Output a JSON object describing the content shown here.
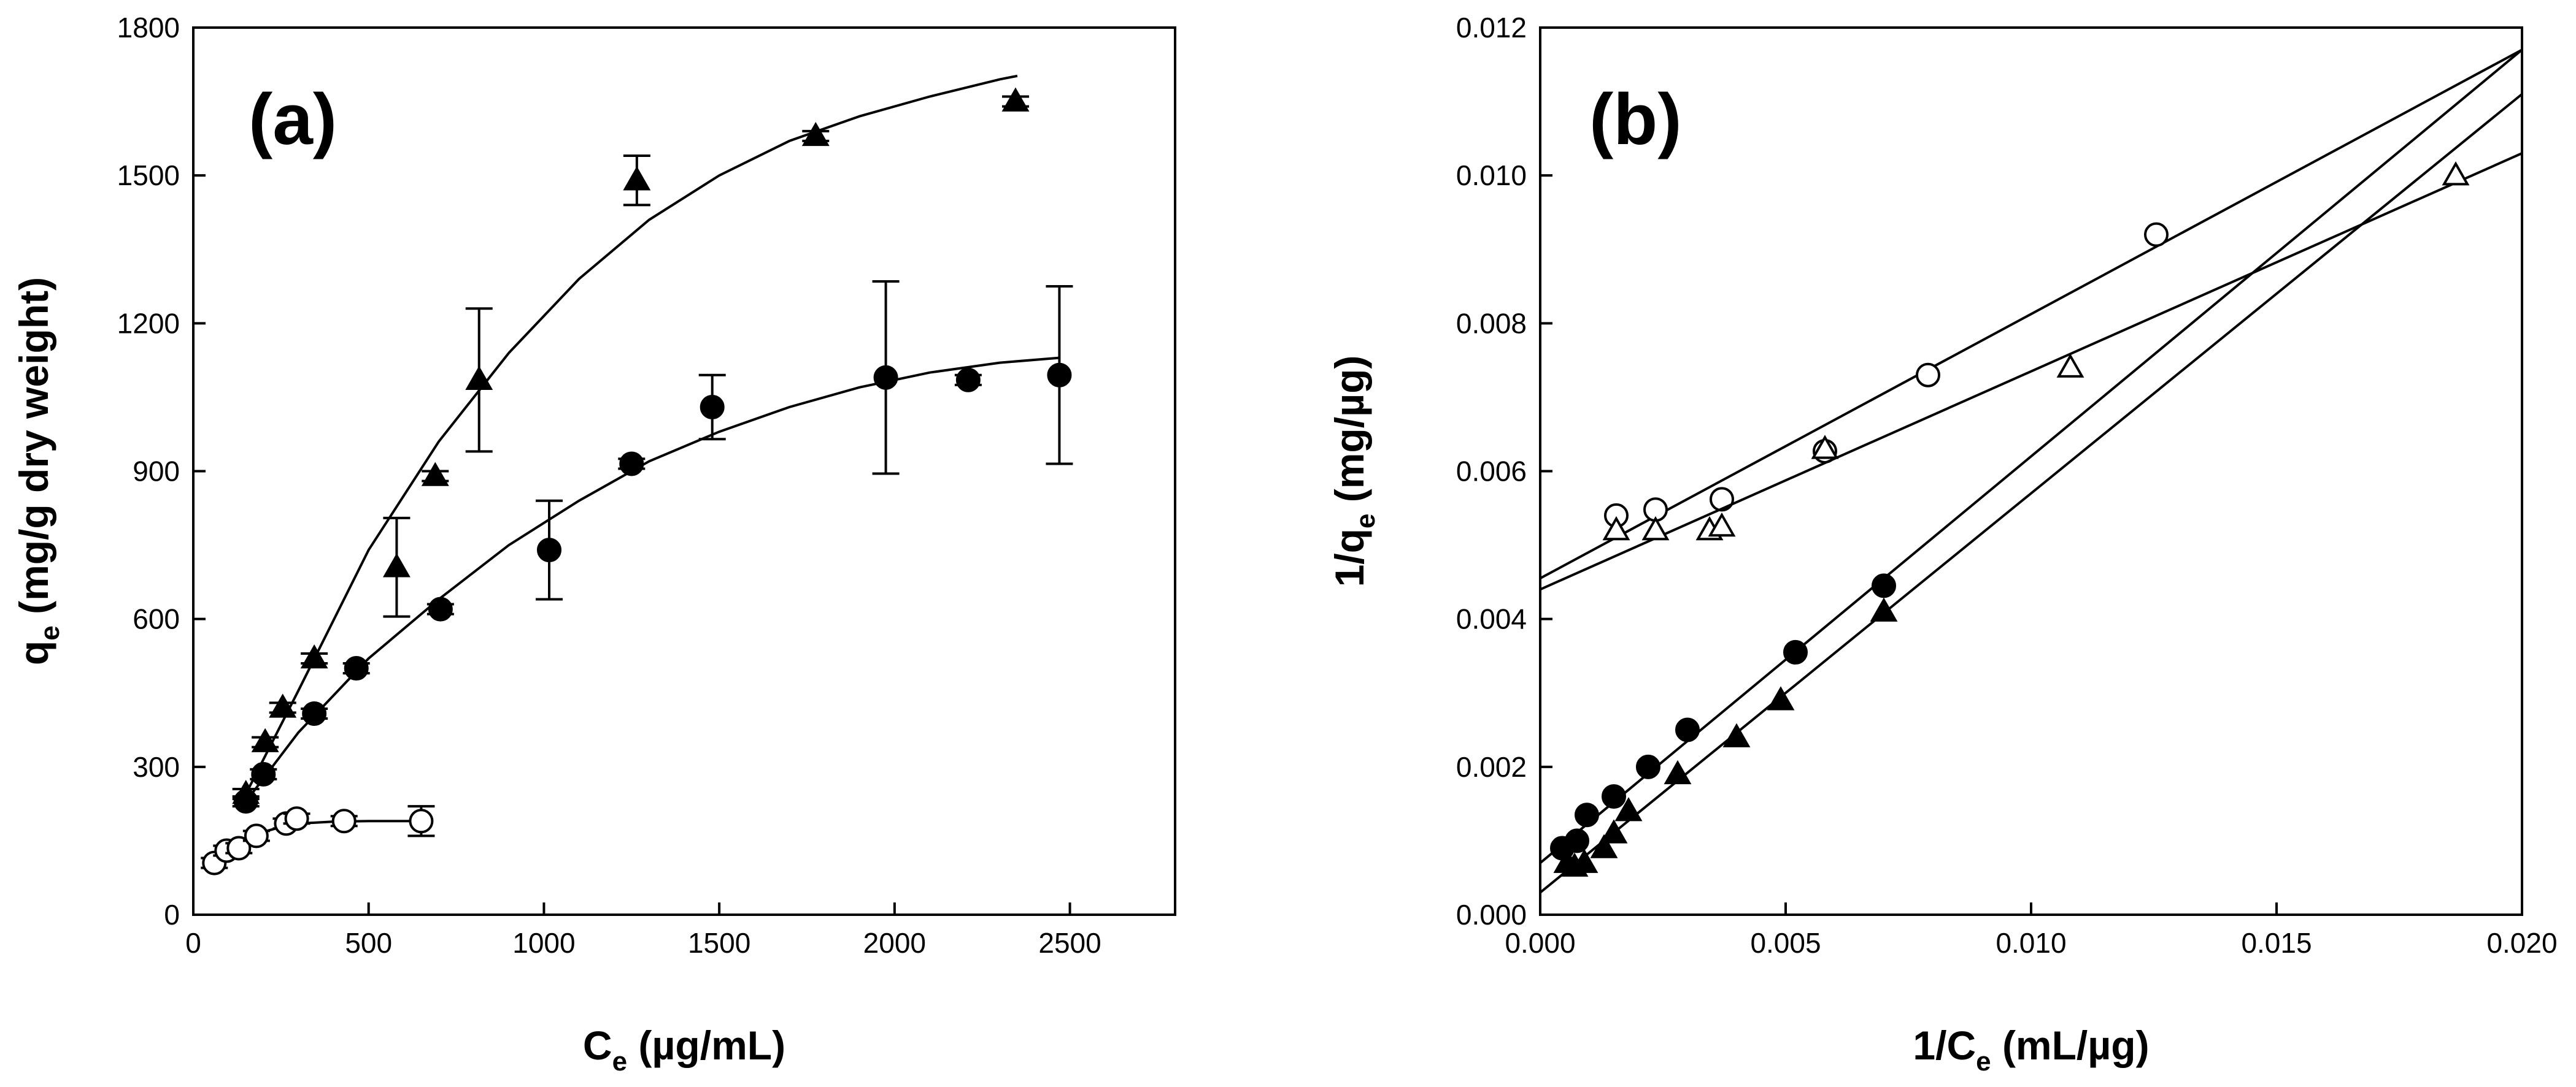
{
  "chart_data": [
    {
      "panel": "a",
      "type": "scatter",
      "panel_label": "(a)",
      "xlabel": {
        "main": "C",
        "sub": "e",
        "rest": " (µg/mL)"
      },
      "ylabel": {
        "main": "q",
        "sub": "e",
        "rest": " (mg/g dry weight)"
      },
      "xlim": [
        0,
        2800
      ],
      "ylim": [
        0,
        1800
      ],
      "xticks": [
        0,
        500,
        1000,
        1500,
        2000,
        2500
      ],
      "yticks": [
        0,
        300,
        600,
        900,
        1200,
        1500,
        1800
      ],
      "xtick_labels": [
        "0",
        "500",
        "1000",
        "1500",
        "2000",
        "2500"
      ],
      "ytick_labels": [
        "0",
        "300",
        "600",
        "900",
        "1200",
        "1500",
        "1800"
      ],
      "series": [
        {
          "name": "triangle-filled",
          "marker": "triangle",
          "filled": true,
          "points": [
            {
              "x": 150,
              "y": 245,
              "err": 10
            },
            {
              "x": 205,
              "y": 350,
              "err": 10
            },
            {
              "x": 255,
              "y": 420,
              "err": 10
            },
            {
              "x": 345,
              "y": 520,
              "err": 10
            },
            {
              "x": 580,
              "y": 705,
              "err": 100
            },
            {
              "x": 690,
              "y": 890,
              "err": 10
            },
            {
              "x": 815,
              "y": 1085,
              "err": 145
            },
            {
              "x": 1265,
              "y": 1490,
              "err": 50
            },
            {
              "x": 1775,
              "y": 1580,
              "err": 10
            },
            {
              "x": 2345,
              "y": 1650,
              "err": 10
            }
          ],
          "fit": [
            [
              150,
              245
            ],
            [
              300,
              455
            ],
            [
              500,
              740
            ],
            [
              700,
              960
            ],
            [
              900,
              1140
            ],
            [
              1100,
              1290
            ],
            [
              1300,
              1410
            ],
            [
              1500,
              1500
            ],
            [
              1700,
              1570
            ],
            [
              1900,
              1620
            ],
            [
              2100,
              1660
            ],
            [
              2300,
              1695
            ],
            [
              2350,
              1702
            ]
          ]
        },
        {
          "name": "circle-filled",
          "marker": "circle",
          "filled": true,
          "points": [
            {
              "x": 150,
              "y": 230,
              "err": 10
            },
            {
              "x": 200,
              "y": 285,
              "err": 10
            },
            {
              "x": 345,
              "y": 408,
              "err": 10
            },
            {
              "x": 465,
              "y": 500,
              "err": 10
            },
            {
              "x": 705,
              "y": 620,
              "err": 10
            },
            {
              "x": 1015,
              "y": 740,
              "err": 100
            },
            {
              "x": 1250,
              "y": 915,
              "err": 10
            },
            {
              "x": 1480,
              "y": 1030,
              "err": 65
            },
            {
              "x": 1975,
              "y": 1090,
              "err": 195
            },
            {
              "x": 2210,
              "y": 1085,
              "err": 10
            },
            {
              "x": 2470,
              "y": 1095,
              "err": 180
            }
          ],
          "fit": [
            [
              145,
              225
            ],
            [
              300,
              370
            ],
            [
              500,
              520
            ],
            [
              700,
              640
            ],
            [
              900,
              750
            ],
            [
              1100,
              840
            ],
            [
              1300,
              920
            ],
            [
              1500,
              980
            ],
            [
              1700,
              1030
            ],
            [
              1900,
              1070
            ],
            [
              2100,
              1100
            ],
            [
              2300,
              1120
            ],
            [
              2470,
              1130
            ]
          ]
        },
        {
          "name": "circle-open",
          "marker": "circle",
          "filled": false,
          "points": [
            {
              "x": 60,
              "y": 105,
              "err": 10
            },
            {
              "x": 95,
              "y": 130,
              "err": 10
            },
            {
              "x": 130,
              "y": 135,
              "err": 10
            },
            {
              "x": 180,
              "y": 160,
              "err": 10
            },
            {
              "x": 265,
              "y": 185,
              "err": 10
            },
            {
              "x": 295,
              "y": 195,
              "err": 10
            },
            {
              "x": 430,
              "y": 190,
              "err": 10
            },
            {
              "x": 650,
              "y": 190,
              "err": 30
            }
          ],
          "fit": [
            [
              50,
              100
            ],
            [
              100,
              130
            ],
            [
              150,
              150
            ],
            [
              200,
              168
            ],
            [
              250,
              178
            ],
            [
              300,
              185
            ],
            [
              400,
              189
            ],
            [
              500,
              190
            ],
            [
              650,
              190
            ]
          ]
        }
      ]
    },
    {
      "panel": "b",
      "type": "scatter",
      "panel_label": "(b)",
      "xlabel": {
        "main": "1/C",
        "sub": "e",
        "rest": " (mL/µg)"
      },
      "ylabel": {
        "main": "1/q",
        "sub": "e",
        "rest": " (mg/µg)"
      },
      "xlim": [
        0,
        0.02
      ],
      "ylim": [
        0,
        0.012
      ],
      "xticks": [
        0,
        0.005,
        0.01,
        0.015,
        0.02
      ],
      "yticks": [
        0,
        0.002,
        0.004,
        0.006,
        0.008,
        0.01,
        0.012
      ],
      "xtick_labels": [
        "0.000",
        "0.005",
        "0.010",
        "0.015",
        "0.020"
      ],
      "ytick_labels": [
        "0.000",
        "0.002",
        "0.004",
        "0.006",
        "0.008",
        "0.010",
        "0.012"
      ],
      "series": [
        {
          "name": "circle-open",
          "marker": "circle",
          "filled": false,
          "points": [
            {
              "x": 0.00155,
              "y": 0.0054
            },
            {
              "x": 0.00235,
              "y": 0.00548
            },
            {
              "x": 0.0037,
              "y": 0.00562
            },
            {
              "x": 0.0058,
              "y": 0.00627
            },
            {
              "x": 0.0079,
              "y": 0.0073
            },
            {
              "x": 0.01255,
              "y": 0.0092
            }
          ],
          "fit": [
            [
              0,
              0.00455
            ],
            [
              0.02,
              0.0117
            ]
          ]
        },
        {
          "name": "triangle-open",
          "marker": "triangle",
          "filled": false,
          "points": [
            {
              "x": 0.00155,
              "y": 0.0052
            },
            {
              "x": 0.00235,
              "y": 0.0052
            },
            {
              "x": 0.00345,
              "y": 0.0052
            },
            {
              "x": 0.0037,
              "y": 0.00525
            },
            {
              "x": 0.0058,
              "y": 0.0063
            },
            {
              "x": 0.0108,
              "y": 0.0074
            },
            {
              "x": 0.01865,
              "y": 0.01
            }
          ],
          "fit": [
            [
              0,
              0.0044
            ],
            [
              0.02,
              0.0103
            ]
          ]
        },
        {
          "name": "circle-filled",
          "marker": "circle",
          "filled": true,
          "points": [
            {
              "x": 0.00045,
              "y": 0.0009
            },
            {
              "x": 0.00075,
              "y": 0.001
            },
            {
              "x": 0.00095,
              "y": 0.00135
            },
            {
              "x": 0.0015,
              "y": 0.0016
            },
            {
              "x": 0.0022,
              "y": 0.002
            },
            {
              "x": 0.003,
              "y": 0.0025
            },
            {
              "x": 0.0052,
              "y": 0.00355
            },
            {
              "x": 0.007,
              "y": 0.00445
            }
          ],
          "fit": [
            [
              0,
              0.0007
            ],
            [
              0.02,
              0.0117
            ]
          ]
        },
        {
          "name": "triangle-filled",
          "marker": "triangle",
          "filled": true,
          "points": [
            {
              "x": 0.00055,
              "y": 0.0007
            },
            {
              "x": 0.0007,
              "y": 0.00065
            },
            {
              "x": 0.0009,
              "y": 0.0007
            },
            {
              "x": 0.0013,
              "y": 0.0009
            },
            {
              "x": 0.0015,
              "y": 0.0011
            },
            {
              "x": 0.0018,
              "y": 0.0014
            },
            {
              "x": 0.0028,
              "y": 0.0019
            },
            {
              "x": 0.004,
              "y": 0.0024
            },
            {
              "x": 0.0049,
              "y": 0.0029
            },
            {
              "x": 0.007,
              "y": 0.0041
            }
          ],
          "fit": [
            [
              0,
              0.0003
            ],
            [
              0.02,
              0.0111
            ]
          ]
        }
      ]
    }
  ]
}
